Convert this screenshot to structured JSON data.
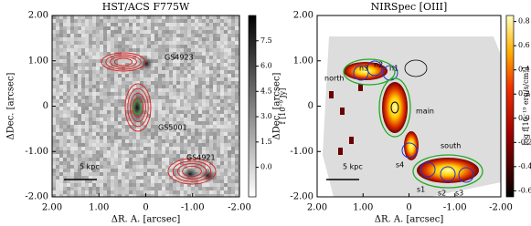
{
  "chart_data": [
    {
      "type": "image",
      "title": "HST/ACS F775W",
      "xlabel": "ΔR. A. [arcsec]",
      "ylabel": "ΔDec. [arcsec]",
      "xlim": [
        2,
        -2
      ],
      "ylim": [
        -2,
        2
      ],
      "xticks": [
        {
          "value": 2,
          "label": "2.00"
        },
        {
          "value": 1,
          "label": "1.00"
        },
        0,
        {
          "value": -1,
          "label": "-1.00"
        },
        {
          "value": -2,
          "label": "-2.00"
        }
      ],
      "yticks": [
        {
          "value": 2,
          "label": "2.00"
        },
        {
          "value": 1,
          "label": "1.00"
        },
        0,
        {
          "value": -1,
          "label": "-1.00"
        },
        {
          "value": -2,
          "label": "-2.00"
        }
      ],
      "colorbar": {
        "label": "f [10⁻⁹ Jy]",
        "lim": [
          -1.75,
          9.0
        ],
        "ticks": [
          {
            "value": 0,
            "label": "0.0"
          },
          1.5,
          {
            "value": 3,
            "label": "3.0"
          },
          4.5,
          {
            "value": 6,
            "label": "6.0"
          },
          7.5
        ]
      },
      "annotations": [
        {
          "text": "GS4923",
          "color": "#2233cc"
        },
        {
          "text": "GS5001",
          "color": "#2233cc"
        },
        {
          "text": "GS4921",
          "color": "#2233cc"
        },
        {
          "text": "5 kpc",
          "color": "#000000"
        }
      ]
    },
    {
      "type": "image",
      "title": "NIRSpec [OIII]",
      "xlabel": "ΔR. A. [arcsec]",
      "ylabel": "ΔDec. [arcsec]",
      "xlim": [
        2,
        -2
      ],
      "ylim": [
        -2,
        2
      ],
      "xticks": [
        {
          "value": 2,
          "label": "2.00"
        },
        {
          "value": 1,
          "label": "1.00"
        },
        0,
        {
          "value": -1,
          "label": "-1.00"
        },
        {
          "value": -2,
          "label": "-2.00"
        }
      ],
      "yticks": [
        {
          "value": 2,
          "label": "2.00"
        },
        {
          "value": 1,
          "label": "1.00"
        },
        0,
        {
          "value": -1,
          "label": "-1.00"
        },
        {
          "value": -2,
          "label": "-2.00"
        }
      ],
      "colorbar": {
        "label": "log f[10⁻¹⁹ erg/s/cm²]",
        "lim": [
          -0.65,
          0.85
        ],
        "ticks": [
          -0.6,
          -0.4,
          -0.2,
          {
            "value": 0,
            "label": "0.0"
          },
          0.2,
          0.4,
          0.6,
          0.8
        ]
      },
      "annotations": [
        {
          "text": "north",
          "color": "#22aa22"
        },
        {
          "text": "main",
          "color": "#22aa22"
        },
        {
          "text": "south",
          "color": "#22aa22"
        },
        {
          "text": "n3",
          "color": "#2233cc"
        },
        {
          "text": "n2",
          "color": "#2233cc"
        },
        {
          "text": "n1",
          "color": "#2233cc"
        },
        {
          "text": "s4",
          "color": "#2233cc"
        },
        {
          "text": "s1",
          "color": "#2233cc"
        },
        {
          "text": "s2",
          "color": "#2233cc"
        },
        {
          "text": "s3",
          "color": "#2233cc"
        },
        {
          "text": "5 kpc",
          "color": "#000000"
        }
      ]
    }
  ]
}
